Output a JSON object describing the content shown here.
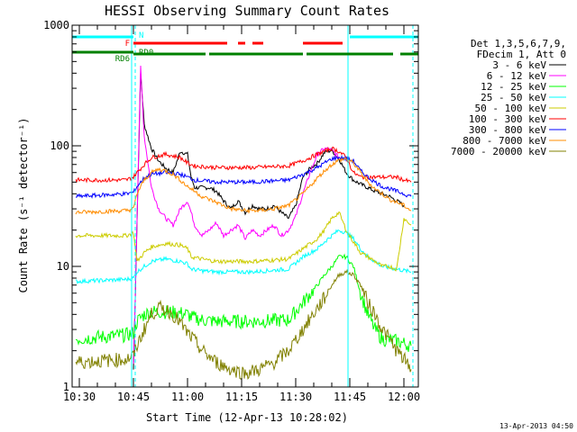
{
  "chart_data": {
    "type": "line",
    "title": "HESSI Observing Summary Count Rates",
    "xlabel": "Start Time (12-Apr-13 10:28:02)",
    "ylabel": "Count Rate (s⁻¹ detector⁻¹)",
    "yscale": "log",
    "ylim": [
      1,
      1000
    ],
    "xlim_minutes": [
      0,
      96
    ],
    "x_tick_labels": [
      "10:30",
      "10:45",
      "11:00",
      "11:15",
      "11:30",
      "11:45",
      "12:00"
    ],
    "x_tick_minutes": [
      2,
      17,
      32,
      47,
      62,
      77,
      92
    ],
    "y_tick_labels": [
      "1",
      "10",
      "100",
      "1000"
    ],
    "y_tick_values": [
      1,
      10,
      100,
      1000
    ],
    "grid": false,
    "legend_placement": "right",
    "legend_header": [
      "Det 1,3,5,6,7,9,",
      "FDecim 1, Att 0"
    ],
    "timestamp": "13-Apr-2013 04:50",
    "status_bars": [
      {
        "label": "N",
        "color": "#00ffff",
        "segments": [
          [
            0,
            17
          ],
          [
            77,
            96
          ]
        ]
      },
      {
        "label": "F",
        "color": "#ff0000",
        "segments": [
          [
            17,
            43
          ],
          [
            46,
            48
          ],
          [
            50,
            53
          ],
          [
            64,
            75
          ]
        ]
      },
      {
        "label": "RD0",
        "color": "#008000",
        "segments": [
          [
            17,
            37
          ],
          [
            38,
            64
          ],
          [
            65,
            89
          ],
          [
            91,
            96
          ]
        ]
      },
      {
        "label": "RD6",
        "color": "#008000",
        "segments": [
          [
            0,
            17
          ]
        ]
      }
    ],
    "vertical_markers": [
      {
        "minute": 16.5,
        "color": "#00ffff",
        "style": "solid"
      },
      {
        "minute": 17.5,
        "color": "#00ffff",
        "style": "dashed"
      },
      {
        "minute": 76.5,
        "color": "#00ffff",
        "style": "solid"
      },
      {
        "minute": 94.5,
        "color": "#00ffff",
        "style": "dashed"
      }
    ],
    "series": [
      {
        "name": "3 - 6 keV",
        "color": "#000000",
        "points": [
          [
            17,
            1.4
          ],
          [
            19,
            400
          ],
          [
            20,
            150
          ],
          [
            22,
            95
          ],
          [
            24,
            75
          ],
          [
            26,
            65
          ],
          [
            28,
            60
          ],
          [
            30,
            90
          ],
          [
            32,
            85
          ],
          [
            33,
            55
          ],
          [
            34,
            45
          ],
          [
            36,
            45
          ],
          [
            38,
            45
          ],
          [
            40,
            42
          ],
          [
            42,
            35
          ],
          [
            44,
            30
          ],
          [
            46,
            35
          ],
          [
            48,
            28
          ],
          [
            50,
            32
          ],
          [
            52,
            30
          ],
          [
            54,
            30
          ],
          [
            56,
            32
          ],
          [
            58,
            28
          ],
          [
            60,
            25
          ],
          [
            62,
            32
          ],
          [
            64,
            55
          ],
          [
            66,
            65
          ],
          [
            68,
            72
          ],
          [
            70,
            88
          ],
          [
            72,
            92
          ],
          [
            74,
            78
          ],
          [
            76,
            60
          ],
          [
            78,
            52
          ],
          [
            80,
            48
          ],
          [
            82,
            45
          ],
          [
            84,
            42
          ],
          [
            86,
            40
          ],
          [
            88,
            38
          ],
          [
            90,
            35
          ],
          [
            92,
            32
          ]
        ]
      },
      {
        "name": "6 - 12 keV",
        "color": "#ff00ff",
        "points": [
          [
            17,
            1.4
          ],
          [
            19,
            450
          ],
          [
            20,
            120
          ],
          [
            22,
            45
          ],
          [
            24,
            30
          ],
          [
            26,
            25
          ],
          [
            28,
            22
          ],
          [
            30,
            30
          ],
          [
            32,
            35
          ],
          [
            33,
            28
          ],
          [
            34,
            22
          ],
          [
            36,
            18
          ],
          [
            38,
            20
          ],
          [
            40,
            23
          ],
          [
            42,
            18
          ],
          [
            44,
            20
          ],
          [
            46,
            22
          ],
          [
            48,
            17
          ],
          [
            50,
            20
          ],
          [
            52,
            18
          ],
          [
            54,
            20
          ],
          [
            56,
            22
          ],
          [
            58,
            18
          ],
          [
            60,
            20
          ],
          [
            62,
            26
          ],
          [
            64,
            40
          ],
          [
            66,
            60
          ],
          [
            68,
            85
          ],
          [
            70,
            95
          ],
          [
            72,
            92
          ],
          [
            74,
            80
          ]
        ]
      },
      {
        "name": "12 - 25 keV",
        "color": "#00ff00",
        "points": [
          [
            1,
            2.5
          ],
          [
            15,
            2.7
          ],
          [
            17,
            2.8
          ],
          [
            18,
            3.5
          ],
          [
            20,
            4
          ],
          [
            22,
            4.2
          ],
          [
            26,
            4.2
          ],
          [
            30,
            4.1
          ],
          [
            32,
            4
          ],
          [
            33,
            3.8
          ],
          [
            36,
            3.6
          ],
          [
            40,
            3.5
          ],
          [
            50,
            3.5
          ],
          [
            60,
            3.6
          ],
          [
            64,
            5
          ],
          [
            68,
            7
          ],
          [
            70,
            8.5
          ],
          [
            72,
            10
          ],
          [
            74,
            12
          ],
          [
            76,
            12
          ],
          [
            78,
            10
          ],
          [
            80,
            6
          ],
          [
            82,
            4
          ],
          [
            84,
            3
          ],
          [
            86,
            2.5
          ],
          [
            90,
            2.4
          ],
          [
            94,
            2.2
          ]
        ]
      },
      {
        "name": "25 - 50 keV",
        "color": "#00ffff",
        "points": [
          [
            1,
            7.5
          ],
          [
            15,
            7.8
          ],
          [
            17,
            8
          ],
          [
            18,
            9
          ],
          [
            20,
            10
          ],
          [
            22,
            11
          ],
          [
            26,
            11.5
          ],
          [
            30,
            11
          ],
          [
            32,
            10.5
          ],
          [
            33,
            9.5
          ],
          [
            36,
            9.2
          ],
          [
            40,
            9
          ],
          [
            50,
            9
          ],
          [
            60,
            9.5
          ],
          [
            64,
            12
          ],
          [
            68,
            14
          ],
          [
            70,
            16
          ],
          [
            72,
            18
          ],
          [
            74,
            20
          ],
          [
            76,
            19
          ],
          [
            78,
            17
          ],
          [
            80,
            14
          ],
          [
            82,
            12
          ],
          [
            84,
            11
          ],
          [
            86,
            10
          ],
          [
            90,
            9.5
          ],
          [
            94,
            9
          ]
        ]
      },
      {
        "name": "50 - 100 keV",
        "color": "#cccc00",
        "points": [
          [
            1,
            18
          ],
          [
            15,
            18
          ],
          [
            17,
            19
          ],
          [
            18,
            11
          ],
          [
            20,
            13
          ],
          [
            22,
            14.5
          ],
          [
            26,
            15.5
          ],
          [
            30,
            15
          ],
          [
            32,
            14
          ],
          [
            33,
            12
          ],
          [
            36,
            11.5
          ],
          [
            40,
            11
          ],
          [
            50,
            11
          ],
          [
            60,
            11.5
          ],
          [
            64,
            14
          ],
          [
            68,
            17
          ],
          [
            70,
            20
          ],
          [
            72,
            25
          ],
          [
            74,
            28
          ],
          [
            76,
            20
          ],
          [
            78,
            16
          ],
          [
            80,
            13
          ],
          [
            82,
            12
          ],
          [
            84,
            11
          ],
          [
            86,
            10
          ],
          [
            88,
            10
          ],
          [
            90,
            9.5
          ],
          [
            92,
            25
          ],
          [
            94,
            22
          ]
        ]
      },
      {
        "name": "100 - 300 keV",
        "color": "#ff0000",
        "points": [
          [
            1,
            52
          ],
          [
            15,
            52
          ],
          [
            17,
            55
          ],
          [
            18,
            60
          ],
          [
            20,
            70
          ],
          [
            22,
            80
          ],
          [
            26,
            85
          ],
          [
            30,
            80
          ],
          [
            32,
            72
          ],
          [
            34,
            68
          ],
          [
            40,
            66
          ],
          [
            50,
            66
          ],
          [
            60,
            68
          ],
          [
            64,
            75
          ],
          [
            68,
            85
          ],
          [
            70,
            90
          ],
          [
            72,
            95
          ],
          [
            74,
            90
          ],
          [
            76,
            80
          ],
          [
            78,
            60
          ],
          [
            80,
            55
          ],
          [
            84,
            55
          ],
          [
            90,
            55
          ],
          [
            92,
            52
          ],
          [
            94,
            50
          ]
        ]
      },
      {
        "name": "300 - 800 keV",
        "color": "#0000ff",
        "points": [
          [
            1,
            38
          ],
          [
            15,
            40
          ],
          [
            17,
            41
          ],
          [
            18,
            46
          ],
          [
            20,
            54
          ],
          [
            22,
            58
          ],
          [
            26,
            60
          ],
          [
            30,
            58
          ],
          [
            32,
            55
          ],
          [
            34,
            52
          ],
          [
            40,
            50
          ],
          [
            50,
            50
          ],
          [
            60,
            52
          ],
          [
            64,
            58
          ],
          [
            68,
            66
          ],
          [
            70,
            72
          ],
          [
            72,
            78
          ],
          [
            74,
            80
          ],
          [
            76,
            78
          ],
          [
            78,
            75
          ],
          [
            80,
            62
          ],
          [
            82,
            55
          ],
          [
            84,
            50
          ],
          [
            86,
            46
          ],
          [
            88,
            44
          ],
          [
            90,
            42
          ],
          [
            92,
            40
          ],
          [
            94,
            38
          ]
        ]
      },
      {
        "name": "800 - 7000 keV",
        "color": "#ff8c00",
        "points": [
          [
            1,
            28
          ],
          [
            15,
            29
          ],
          [
            17,
            30
          ],
          [
            18,
            40
          ],
          [
            20,
            52
          ],
          [
            22,
            60
          ],
          [
            24,
            64
          ],
          [
            26,
            62
          ],
          [
            28,
            58
          ],
          [
            30,
            52
          ],
          [
            32,
            46
          ],
          [
            34,
            42
          ],
          [
            36,
            38
          ],
          [
            40,
            34
          ],
          [
            44,
            30
          ],
          [
            48,
            29
          ],
          [
            52,
            29
          ],
          [
            56,
            30
          ],
          [
            60,
            32
          ],
          [
            64,
            40
          ],
          [
            68,
            54
          ],
          [
            70,
            62
          ],
          [
            72,
            70
          ],
          [
            74,
            76
          ],
          [
            76,
            78
          ],
          [
            78,
            72
          ],
          [
            80,
            60
          ],
          [
            82,
            50
          ],
          [
            84,
            44
          ],
          [
            86,
            40
          ],
          [
            88,
            36
          ],
          [
            90,
            34
          ],
          [
            92,
            32
          ],
          [
            94,
            29
          ]
        ]
      },
      {
        "name": "7000 - 20000 keV",
        "color": "#808000",
        "points": [
          [
            1,
            1.6
          ],
          [
            15,
            1.7
          ],
          [
            17,
            1.8
          ],
          [
            18,
            2.2
          ],
          [
            20,
            3
          ],
          [
            22,
            4
          ],
          [
            24,
            4.5
          ],
          [
            26,
            4.4
          ],
          [
            28,
            4
          ],
          [
            30,
            3.4
          ],
          [
            32,
            2.8
          ],
          [
            34,
            2.4
          ],
          [
            36,
            2
          ],
          [
            40,
            1.6
          ],
          [
            44,
            1.4
          ],
          [
            48,
            1.3
          ],
          [
            52,
            1.4
          ],
          [
            56,
            1.6
          ],
          [
            60,
            2
          ],
          [
            64,
            3
          ],
          [
            68,
            4.5
          ],
          [
            70,
            5.5
          ],
          [
            72,
            7
          ],
          [
            74,
            8.5
          ],
          [
            76,
            9
          ],
          [
            78,
            8.5
          ],
          [
            80,
            7
          ],
          [
            82,
            5
          ],
          [
            84,
            4
          ],
          [
            86,
            3
          ],
          [
            88,
            2.5
          ],
          [
            90,
            2
          ],
          [
            92,
            1.7
          ],
          [
            94,
            1.4
          ]
        ]
      }
    ]
  }
}
